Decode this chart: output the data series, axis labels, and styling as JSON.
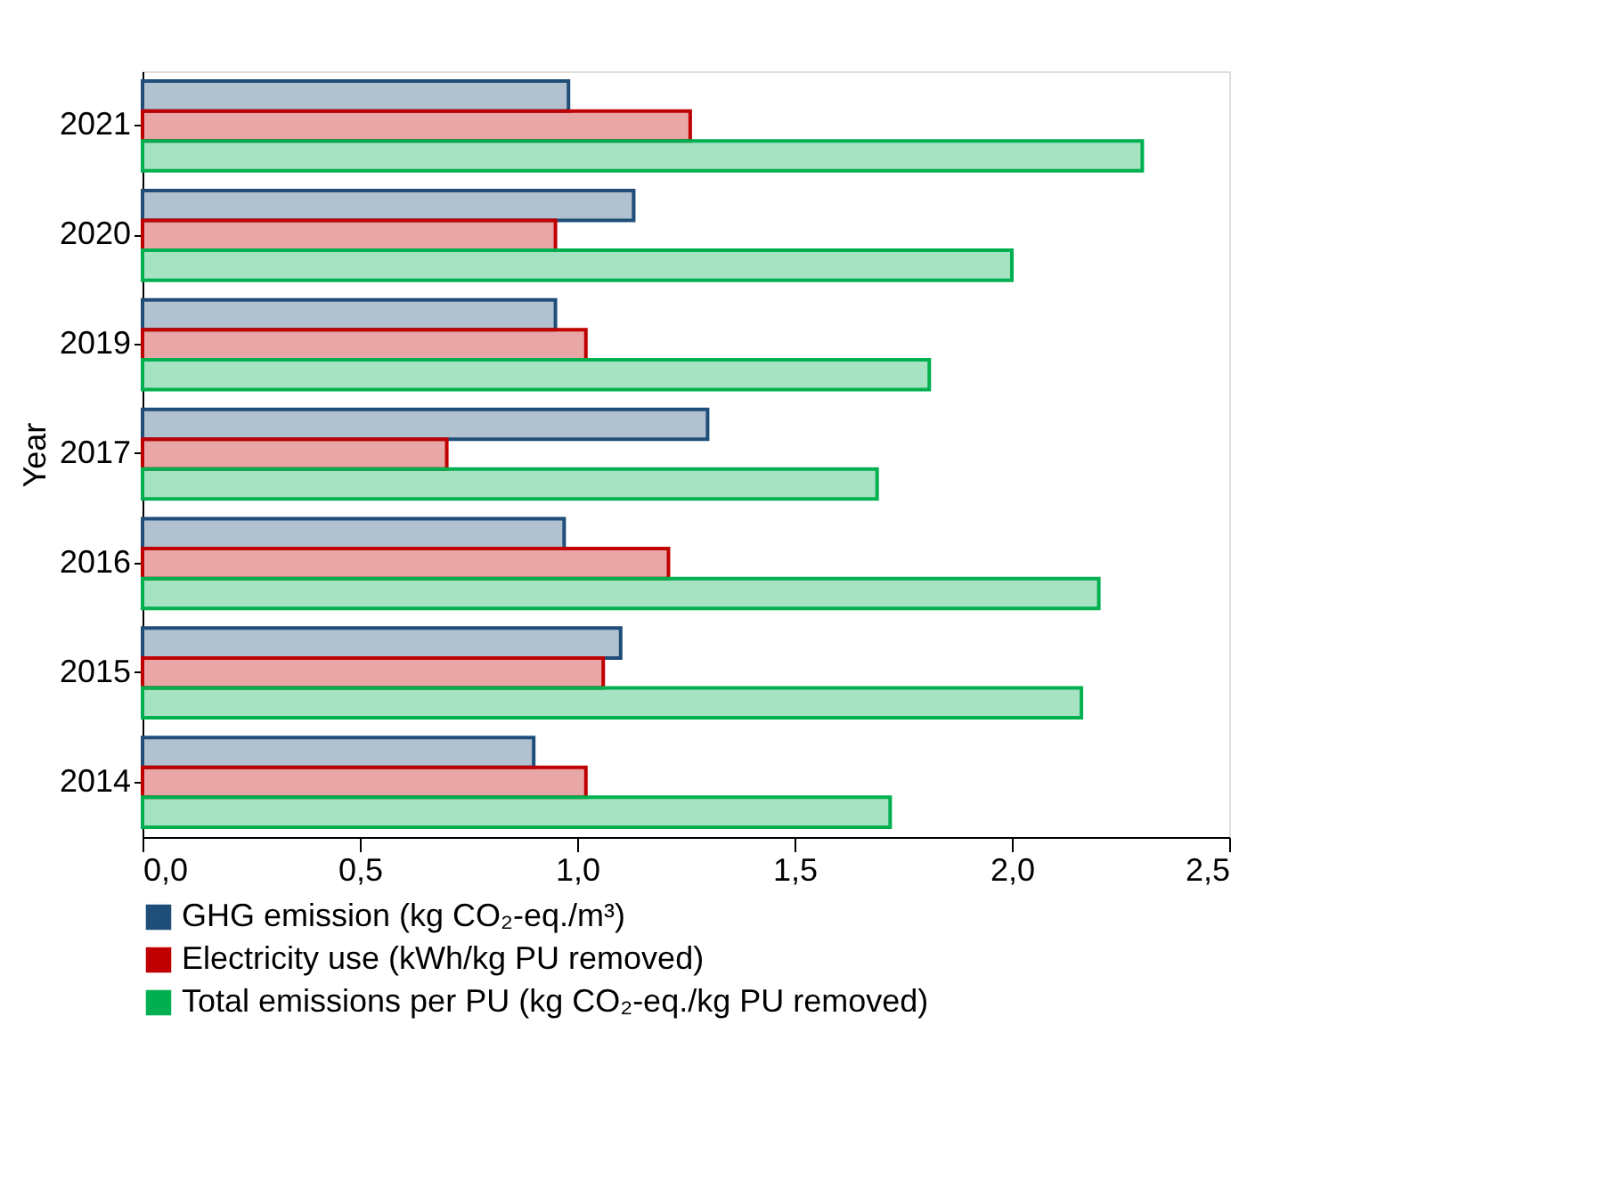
{
  "chart_data": {
    "type": "bar",
    "orientation": "horizontal",
    "ylabel": "Year",
    "categories": [
      "2021",
      "2020",
      "2019",
      "2017",
      "2016",
      "2015",
      "2014"
    ],
    "series": [
      {
        "name": "GHG emission (kg CO₂-eq./m³)",
        "color": "#1f4e79",
        "values": [
          0.98,
          1.13,
          0.95,
          1.3,
          0.97,
          1.1,
          0.9
        ]
      },
      {
        "name": "Electricity use (kWh/kg PU removed)",
        "color": "#c00000",
        "values": [
          1.26,
          0.95,
          1.02,
          0.7,
          1.21,
          1.06,
          1.02
        ]
      },
      {
        "name": "Total emissions per PU (kg CO₂-eq./kg PU removed)",
        "color": "#00b050",
        "values": [
          2.3,
          2.0,
          1.81,
          1.69,
          2.2,
          2.16,
          1.72
        ]
      }
    ],
    "xlim": [
      0,
      2.5
    ],
    "xticks": [
      {
        "value": 0,
        "label": "0,0"
      },
      {
        "value": 0.5,
        "label": "0,5"
      },
      {
        "value": 1.0,
        "label": "1,0"
      },
      {
        "value": 1.5,
        "label": "1,5"
      },
      {
        "value": 2.0,
        "label": "2,0"
      },
      {
        "value": 2.5,
        "label": "2,5"
      }
    ],
    "grid": false,
    "legend": "bottom"
  }
}
